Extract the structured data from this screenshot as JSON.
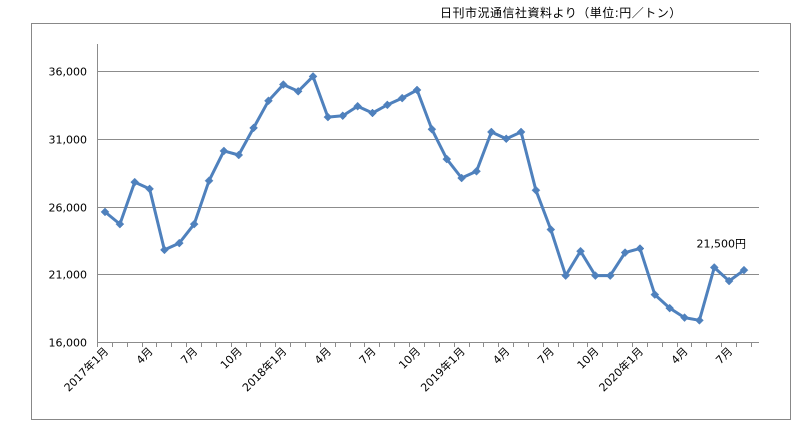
{
  "source_note": "日刊市況通信社資料より（単位:円／トン）",
  "chart_data": {
    "type": "line",
    "title": "",
    "xlabel": "",
    "ylabel": "",
    "unit": "円／トン",
    "ylim": [
      16000,
      36000
    ],
    "y_ticks": [
      16000,
      21000,
      26000,
      31000,
      36000
    ],
    "y_tick_labels": [
      "16,000",
      "21,000",
      "26,000",
      "31,000",
      "36,000"
    ],
    "grid": "horizontal",
    "legend": "none",
    "line_color": "#4f81bd",
    "x": [
      "2017年1月",
      "2月",
      "3月",
      "4月",
      "5月",
      "6月",
      "7月",
      "8月",
      "9月",
      "10月",
      "11月",
      "12月",
      "2018年1月",
      "2月",
      "3月",
      "4月",
      "5月",
      "6月",
      "7月",
      "8月",
      "9月",
      "10月",
      "11月",
      "12月",
      "2019年1月",
      "2月",
      "3月",
      "4月",
      "5月",
      "6月",
      "7月",
      "8月",
      "9月",
      "10月",
      "11月",
      "12月",
      "2020年1月",
      "2月",
      "3月",
      "4月",
      "5月",
      "6月",
      "7月",
      "8月"
    ],
    "x_tick_labels": [
      {
        "index": 0,
        "label": "2017年1月"
      },
      {
        "index": 3,
        "label": "4月"
      },
      {
        "index": 6,
        "label": "7月"
      },
      {
        "index": 9,
        "label": "10月"
      },
      {
        "index": 12,
        "label": "2018年1月"
      },
      {
        "index": 15,
        "label": "4月"
      },
      {
        "index": 18,
        "label": "7月"
      },
      {
        "index": 21,
        "label": "10月"
      },
      {
        "index": 24,
        "label": "2019年1月"
      },
      {
        "index": 27,
        "label": "4月"
      },
      {
        "index": 30,
        "label": "7月"
      },
      {
        "index": 33,
        "label": "10月"
      },
      {
        "index": 36,
        "label": "2020年1月"
      },
      {
        "index": 39,
        "label": "4月"
      },
      {
        "index": 42,
        "label": "7月"
      }
    ],
    "series": [
      {
        "values": [
          25600,
          24700,
          27800,
          27300,
          22800,
          23300,
          24700,
          27900,
          30100,
          29800,
          31800,
          33800,
          35000,
          34500,
          35600,
          32600,
          32700,
          33400,
          32900,
          33500,
          34000,
          34600,
          31700,
          29500,
          28100,
          28600,
          31500,
          31000,
          31500,
          27200,
          24300,
          20900,
          22700,
          20900,
          20900,
          22600,
          22900,
          19500,
          18500,
          17800,
          17600,
          21500,
          20500,
          21300
        ]
      }
    ],
    "annotations": [
      {
        "text": "21,500円",
        "index": 41,
        "value": 21500
      }
    ]
  }
}
